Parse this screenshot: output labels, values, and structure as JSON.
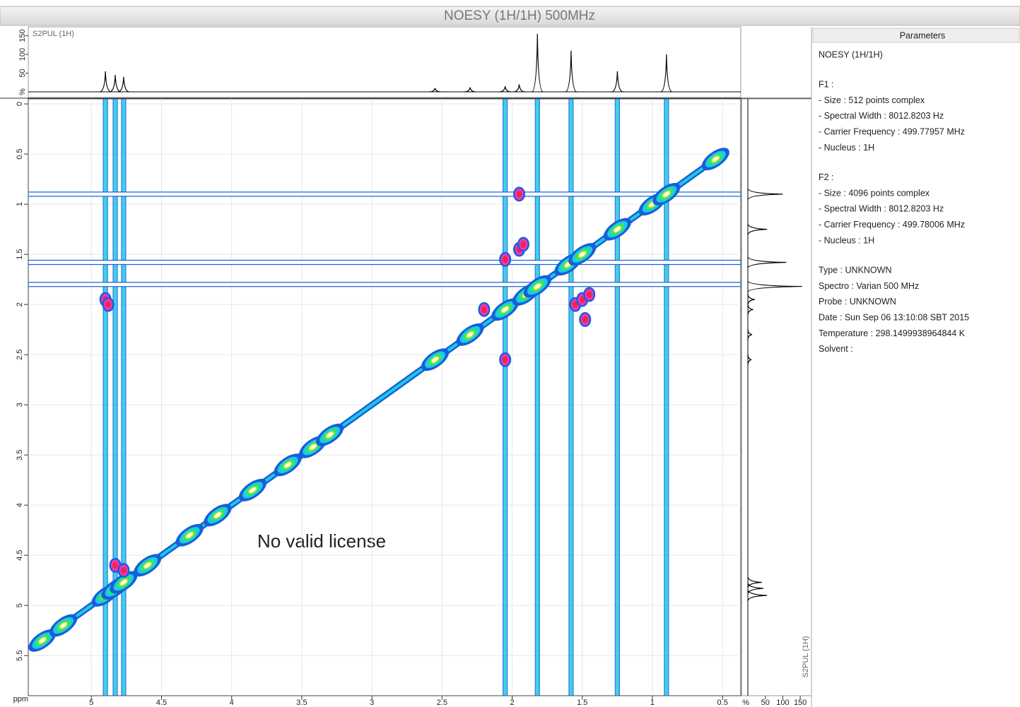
{
  "title": "NOESY  (1H/1H)  500MHz",
  "spectrum": {
    "f2_label": "S2PUL  (1H)",
    "f1_label": "S2PUL  (1H)",
    "axis_unit": "ppm",
    "intensity_unit": "%",
    "xlim": [
      5.45,
      0.37
    ],
    "ylim": [
      -0.05,
      5.9
    ],
    "xticks": [
      5,
      4.5,
      4,
      3.5,
      3,
      2.5,
      2,
      1.5,
      1,
      0.5
    ],
    "yticks": [
      0,
      0.5,
      1,
      1.5,
      2,
      2.5,
      3,
      3.5,
      4,
      4.5,
      5,
      5.5
    ],
    "intensity_lim": [
      0,
      170
    ],
    "intensity_ticks": [
      50,
      100,
      150
    ],
    "peaks_1d": [
      {
        "ppm": 4.9,
        "height": 55
      },
      {
        "ppm": 4.83,
        "height": 45
      },
      {
        "ppm": 4.77,
        "height": 40
      },
      {
        "ppm": 2.55,
        "height": 10
      },
      {
        "ppm": 2.3,
        "height": 12
      },
      {
        "ppm": 2.05,
        "height": 15
      },
      {
        "ppm": 1.95,
        "height": 20
      },
      {
        "ppm": 1.82,
        "height": 155
      },
      {
        "ppm": 1.58,
        "height": 110
      },
      {
        "ppm": 1.25,
        "height": 55
      },
      {
        "ppm": 0.9,
        "height": 100
      }
    ],
    "diagonal": [
      5.42,
      0.48
    ],
    "diagonal_peaks": [
      5.35,
      5.2,
      4.9,
      4.83,
      4.77,
      4.6,
      4.3,
      4.1,
      3.85,
      3.6,
      3.42,
      3.3,
      2.55,
      2.3,
      2.05,
      1.9,
      1.82,
      1.6,
      1.5,
      1.25,
      1.0,
      0.9,
      0.55
    ],
    "cross_peaks": [
      {
        "f2": 2.05,
        "f1": 1.55
      },
      {
        "f2": 1.95,
        "f1": 1.45
      },
      {
        "f2": 1.92,
        "f1": 1.4
      },
      {
        "f2": 1.55,
        "f1": 2.0
      },
      {
        "f2": 1.5,
        "f1": 1.95
      },
      {
        "f2": 1.45,
        "f1": 1.9
      },
      {
        "f2": 1.48,
        "f1": 2.15
      },
      {
        "f2": 2.2,
        "f1": 2.05
      },
      {
        "f2": 2.05,
        "f1": 2.55
      },
      {
        "f2": 4.9,
        "f1": 1.95
      },
      {
        "f2": 4.88,
        "f1": 2.0
      },
      {
        "f2": 1.95,
        "f1": 0.9
      },
      {
        "f2": 4.83,
        "f1": 4.6
      },
      {
        "f2": 4.77,
        "f1": 4.65
      }
    ],
    "stripes_f2": [
      4.9,
      4.83,
      4.77,
      2.05,
      1.82,
      1.58,
      1.25,
      0.9
    ],
    "stripes_f1": [
      0.9,
      1.58,
      1.8
    ],
    "contour_colors": [
      "#1560d8",
      "#1ec8e8",
      "#2ee86a",
      "#f0e030",
      "#f02848"
    ]
  },
  "watermark": "No valid license",
  "parameters": {
    "title": "Parameters",
    "groups": [
      [
        "NOESY  (1H/1H)"
      ],
      [
        "F1 :",
        " - Size : 512 points complex",
        " - Spectral Width : 8012.8203 Hz",
        " - Carrier Frequency : 499.77957 MHz",
        " - Nucleus : 1H"
      ],
      [
        "F2 :",
        " - Size : 4096 points complex",
        " - Spectral Width : 8012.8203 Hz",
        " - Carrier Frequency : 499.78006 MHz",
        " - Nucleus : 1H"
      ],
      [
        "Type : UNKNOWN",
        "Spectro : Varian 500 MHz",
        "Probe : UNKNOWN",
        "Date : Sun Sep 06 13:10:08 SBT 2015",
        "Temperature : 298.1499938964844 K",
        "Solvent :"
      ]
    ]
  }
}
